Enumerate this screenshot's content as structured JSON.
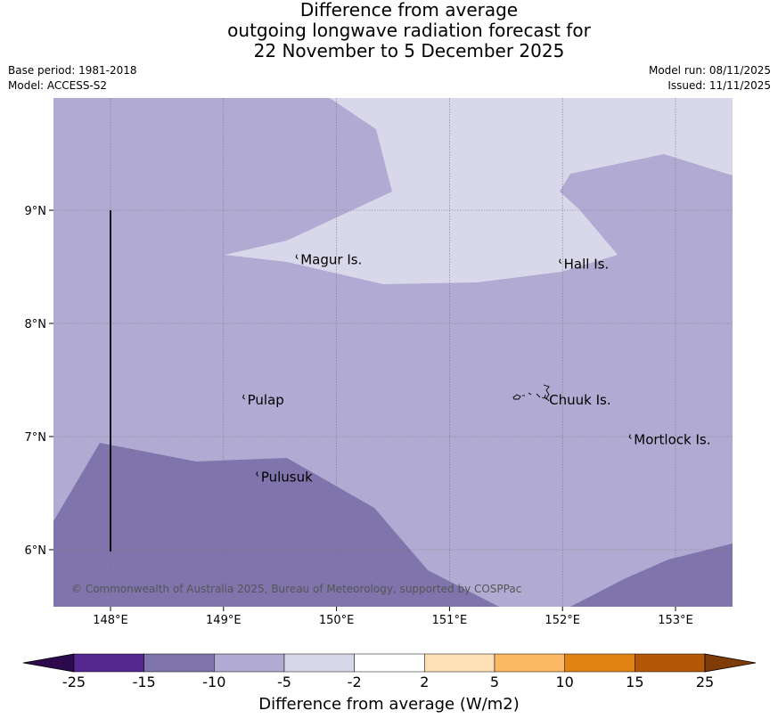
{
  "title": {
    "line1": "Difference from average",
    "line2": "outgoing longwave radiation forecast for",
    "line3": "22 November to 5 December 2025"
  },
  "meta": {
    "base_period": "Base period: 1981-2018",
    "model": "Model: ACCESS-S2",
    "model_run": "Model run: 08/11/2025",
    "issued": "Issued: 11/11/2025"
  },
  "map": {
    "lon_labels": [
      "148°E",
      "149°E",
      "150°E",
      "151°E",
      "152°E",
      "153°E"
    ],
    "lat_labels": [
      "9°N",
      "8°N",
      "7°N",
      "6°N"
    ],
    "places": [
      {
        "name": "Magur Is.",
        "lon": 149.65,
        "lat": 8.57
      },
      {
        "name": "Hall Is.",
        "lon": 151.98,
        "lat": 8.53
      },
      {
        "name": "Pulap",
        "lon": 149.18,
        "lat": 7.33
      },
      {
        "name": "Chuuk Is.",
        "lon": 151.85,
        "lat": 7.33
      },
      {
        "name": "Mortlock Is.",
        "lon": 152.6,
        "lat": 6.98
      },
      {
        "name": "Pulusuk",
        "lon": 149.3,
        "lat": 6.65
      }
    ],
    "copyright": "© Commonwealth of Australia 2025, Bureau of Meteorology, supported by COSPPac",
    "colors": {
      "fill_minus10_minus5": "#b1abd3",
      "fill_minus5_minus2": "#d8d8ea",
      "fill_minus15_minus10": "#8074ac"
    }
  },
  "colorbar": {
    "ticks": [
      "-25",
      "-15",
      "-10",
      "-5",
      "-2",
      "2",
      "5",
      "10",
      "15",
      "25"
    ],
    "colors": [
      "#2d0a4e",
      "#54278f",
      "#8074ac",
      "#b1abd3",
      "#d8d8ea",
      "#ffffff",
      "#fee0b6",
      "#fdb863",
      "#e08214",
      "#b35806",
      "#7f3b08"
    ],
    "label": "Difference from average (W/m2)"
  }
}
